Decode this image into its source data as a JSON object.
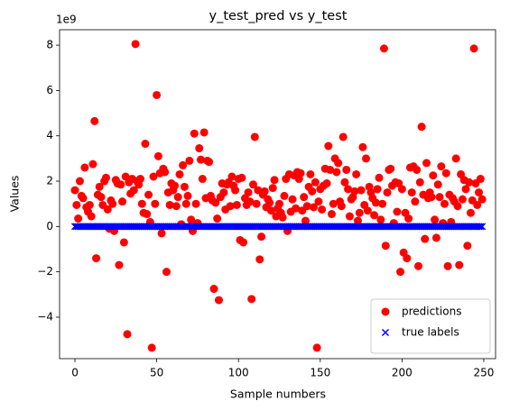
{
  "chart_data": {
    "type": "scatter",
    "title": "y_test_pred vs y_test",
    "x_label": "Sample numbers",
    "y_label": "Values",
    "y_offset_label": "1e9",
    "x": [
      0,
      1,
      2,
      3,
      4,
      5,
      6,
      7,
      8,
      9,
      10,
      11,
      12,
      13,
      14,
      15,
      16,
      17,
      18,
      19,
      20,
      21,
      22,
      23,
      24,
      25,
      26,
      27,
      28,
      29,
      30,
      31,
      32,
      33,
      34,
      35,
      36,
      37,
      38,
      39,
      40,
      41,
      42,
      43,
      44,
      45,
      46,
      47,
      48,
      49,
      50,
      51,
      52,
      53,
      54,
      55,
      56,
      57,
      58,
      59,
      60,
      61,
      62,
      63,
      64,
      65,
      66,
      67,
      68,
      69,
      70,
      71,
      72,
      73,
      74,
      75,
      76,
      77,
      78,
      79,
      80,
      81,
      82,
      83,
      84,
      85,
      86,
      87,
      88,
      89,
      90,
      91,
      92,
      93,
      94,
      95,
      96,
      97,
      98,
      99,
      100,
      101,
      102,
      103,
      104,
      105,
      106,
      107,
      108,
      109,
      110,
      111,
      112,
      113,
      114,
      115,
      116,
      117,
      118,
      119,
      120,
      121,
      122,
      123,
      124,
      125,
      126,
      127,
      128,
      129,
      130,
      131,
      132,
      133,
      134,
      135,
      136,
      137,
      138,
      139,
      140,
      141,
      142,
      143,
      144,
      145,
      146,
      147,
      148,
      149,
      150,
      151,
      152,
      153,
      154,
      155,
      156,
      157,
      158,
      159,
      160,
      161,
      162,
      163,
      164,
      165,
      166,
      167,
      168,
      169,
      170,
      171,
      172,
      173,
      174,
      175,
      176,
      177,
      178,
      179,
      180,
      181,
      182,
      183,
      184,
      185,
      186,
      187,
      188,
      189,
      190,
      191,
      192,
      193,
      194,
      195,
      196,
      197,
      198,
      199,
      200,
      201,
      202,
      203,
      204,
      205,
      206,
      207,
      208,
      209,
      210,
      211,
      212,
      213,
      214,
      215,
      216,
      217,
      218,
      219,
      220,
      221,
      222,
      223,
      224,
      225,
      226,
      227,
      228,
      229,
      230,
      231,
      232,
      233,
      234,
      235,
      236,
      237,
      238,
      239,
      240,
      241,
      242,
      243,
      244,
      245,
      246,
      247,
      248,
      249
    ],
    "series": [
      {
        "name": "predictions",
        "color": "#ff0000",
        "marker": "o",
        "values": [
          1.6,
          0.95,
          0.35,
          2.0,
          1.35,
          1.25,
          2.6,
          0.85,
          0.65,
          0.95,
          0.45,
          2.75,
          4.65,
          -1.4,
          1.4,
          1.75,
          1.3,
          0.95,
          2.0,
          2.15,
          0.75,
          -0.1,
          1.15,
          1.0,
          -0.2,
          2.05,
          1.9,
          -1.7,
          1.85,
          1.1,
          -0.7,
          2.2,
          -4.75,
          1.95,
          1.45,
          2.1,
          1.6,
          8.05,
          2.0,
          1.85,
          2.1,
          1.0,
          0.6,
          3.65,
          0.55,
          1.4,
          0.2,
          -5.35,
          2.2,
          1.0,
          5.8,
          3.1,
          2.35,
          -0.3,
          2.55,
          2.4,
          -2.0,
          1.5,
          0.95,
          1.9,
          1.6,
          1.8,
          0.9,
          1.3,
          2.3,
          0.1,
          2.7,
          1.75,
          1.0,
          1.35,
          2.9,
          0.3,
          -0.2,
          4.1,
          1.0,
          0.15,
          3.45,
          2.95,
          2.1,
          4.15,
          1.25,
          2.9,
          2.85,
          1.35,
          1.15,
          -2.75,
          1.05,
          0.35,
          -3.25,
          1.3,
          1.9,
          1.5,
          0.75,
          1.85,
          1.95,
          0.9,
          2.2,
          1.8,
          1.6,
          0.95,
          2.1,
          -0.6,
          2.15,
          -0.7,
          1.25,
          0.95,
          1.5,
          1.1,
          -3.2,
          1.85,
          3.95,
          1.0,
          1.6,
          -1.45,
          -0.45,
          1.4,
          1.55,
          0.85,
          1.2,
          1.05,
          0.7,
          1.7,
          2.05,
          0.45,
          0.8,
          1.0,
          0.6,
          0.4,
          1.35,
          2.1,
          -0.2,
          2.3,
          0.65,
          1.2,
          2.25,
          0.8,
          2.4,
          2.1,
          2.35,
          0.7,
          1.3,
          0.25,
          0.9,
          1.75,
          2.3,
          1.55,
          0.85,
          1.95,
          -5.35,
          1.1,
          1.65,
          0.75,
          1.8,
          2.55,
          1.9,
          3.55,
          2.5,
          0.55,
          1.0,
          3.0,
          2.4,
          2.8,
          1.1,
          0.9,
          3.95,
          1.95,
          2.5,
          1.65,
          0.45,
          1.2,
          1.3,
          1.55,
          2.3,
          0.25,
          0.6,
          1.6,
          3.5,
          0.95,
          3.0,
          0.7,
          1.75,
          1.5,
          1.25,
          0.5,
          1.05,
          1.65,
          2.15,
          0.3,
          1.0,
          7.85,
          -0.85,
          1.5,
          2.5,
          2.55,
          1.8,
          0.15,
          1.95,
          0.65,
          1.9,
          -2.0,
          1.65,
          -1.15,
          0.6,
          -1.4,
          0.35,
          2.6,
          1.5,
          2.65,
          1.1,
          2.5,
          -1.75,
          1.95,
          4.4,
          1.4,
          -0.55,
          2.8,
          1.25,
          1.5,
          1.3,
          2.25,
          0.3,
          -0.5,
          1.85,
          1.3,
          2.65,
          0.15,
          1.0,
          2.35,
          -1.75,
          1.4,
          0.2,
          1.25,
          1.1,
          3.0,
          0.9,
          -1.7,
          2.3,
          1.2,
          2.05,
          1.65,
          -0.85,
          1.95,
          0.6,
          1.15,
          7.85,
          1.9,
          0.95,
          1.5,
          2.1,
          1.2
        ]
      },
      {
        "name": "true labels",
        "color": "#0000ff",
        "marker": "x",
        "values": [
          0,
          0,
          0,
          0,
          0,
          0,
          0,
          0,
          0,
          0,
          0,
          0,
          0,
          0,
          0,
          0,
          0,
          0,
          0,
          0,
          0,
          0,
          0,
          0,
          0,
          0,
          0,
          0,
          0,
          0,
          0,
          0,
          0,
          0,
          0,
          0,
          0,
          0,
          0,
          0,
          0,
          0,
          0,
          0,
          0,
          0,
          0,
          0,
          0,
          0,
          0,
          0,
          0,
          0,
          0,
          0,
          0,
          0,
          0,
          0,
          0,
          0,
          0,
          0,
          0,
          0,
          0,
          0,
          0,
          0,
          0,
          0,
          0,
          0,
          0,
          0,
          0,
          0,
          0,
          0,
          0,
          0,
          0,
          0,
          0,
          0,
          0,
          0,
          0,
          0,
          0,
          0,
          0,
          0,
          0,
          0,
          0,
          0,
          0,
          0,
          0,
          0,
          0,
          0,
          0,
          0,
          0,
          0,
          0,
          0,
          0,
          0,
          0,
          0,
          0,
          0,
          0,
          0,
          0,
          0,
          0,
          0,
          0,
          0,
          0,
          0,
          0,
          0,
          0,
          0,
          0,
          0,
          0,
          0,
          0,
          0,
          0,
          0,
          0,
          0,
          0,
          0,
          0,
          0,
          0,
          0,
          0,
          0,
          0,
          0,
          0,
          0,
          0,
          0,
          0,
          0,
          0,
          0,
          0,
          0,
          0,
          0,
          0,
          0,
          0,
          0,
          0,
          0,
          0,
          0,
          0,
          0,
          0,
          0,
          0,
          0,
          0,
          0,
          0,
          0,
          0,
          0,
          0,
          0,
          0,
          0,
          0,
          0,
          0,
          0,
          0,
          0,
          0,
          0,
          0,
          0,
          0,
          0,
          0,
          0,
          0,
          0,
          0,
          0,
          0,
          0,
          0,
          0,
          0,
          0,
          0,
          0,
          0,
          0,
          0,
          0,
          0,
          0,
          0,
          0,
          0,
          0,
          0,
          0,
          0,
          0,
          0,
          0,
          0,
          0,
          0,
          0,
          0,
          0,
          0,
          0,
          0,
          0,
          0,
          0,
          0,
          0,
          0,
          0,
          0,
          0,
          0,
          0,
          0,
          0
        ]
      }
    ],
    "xlim": [
      -9.4,
      257.2
    ],
    "xticks": [
      0,
      50,
      100,
      150,
      200,
      250
    ],
    "ylim": [
      -5.83,
      8.68
    ],
    "yticks": [
      {
        "value": -4,
        "label": "−4"
      },
      {
        "value": -2,
        "label": "−2"
      },
      0,
      2,
      4,
      6,
      8
    ],
    "legend": "lower right",
    "grid": false
  }
}
